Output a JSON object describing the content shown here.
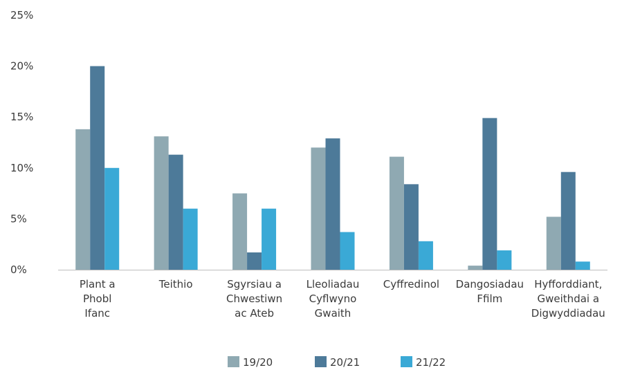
{
  "chart_data": {
    "type": "bar",
    "categories": [
      [
        "Plant a",
        "Phobl",
        "Ifanc"
      ],
      [
        "Teithio"
      ],
      [
        "Sgyrsiau a",
        "Chwestiwn",
        "ac Ateb"
      ],
      [
        "Lleoliadau",
        "Cyflwyno",
        "Gwaith"
      ],
      [
        "Cyffredinol"
      ],
      [
        "Dangosiadau",
        "Ffilm"
      ],
      [
        "Hyfforddiant,",
        "Gweithdai a",
        "Digwyddiadau"
      ]
    ],
    "series": [
      {
        "name": "19/20",
        "color": "#8fa9b2",
        "values": [
          13.8,
          13.1,
          7.5,
          12.0,
          11.1,
          0.4,
          5.2
        ]
      },
      {
        "name": "20/21",
        "color": "#4d7a99",
        "values": [
          20.0,
          11.3,
          1.7,
          12.9,
          8.4,
          14.9,
          9.6
        ]
      },
      {
        "name": "21/22",
        "color": "#3aa9d6",
        "values": [
          10.0,
          6.0,
          6.0,
          3.7,
          2.8,
          1.9,
          0.8
        ]
      }
    ],
    "ylim": [
      0,
      25
    ],
    "yticks": [
      "0%",
      "5%",
      "10%",
      "15%",
      "20%",
      "25%"
    ],
    "ytick_values": [
      0,
      5,
      10,
      15,
      20,
      25
    ],
    "grid": false,
    "legend_position": "bottom-center"
  }
}
